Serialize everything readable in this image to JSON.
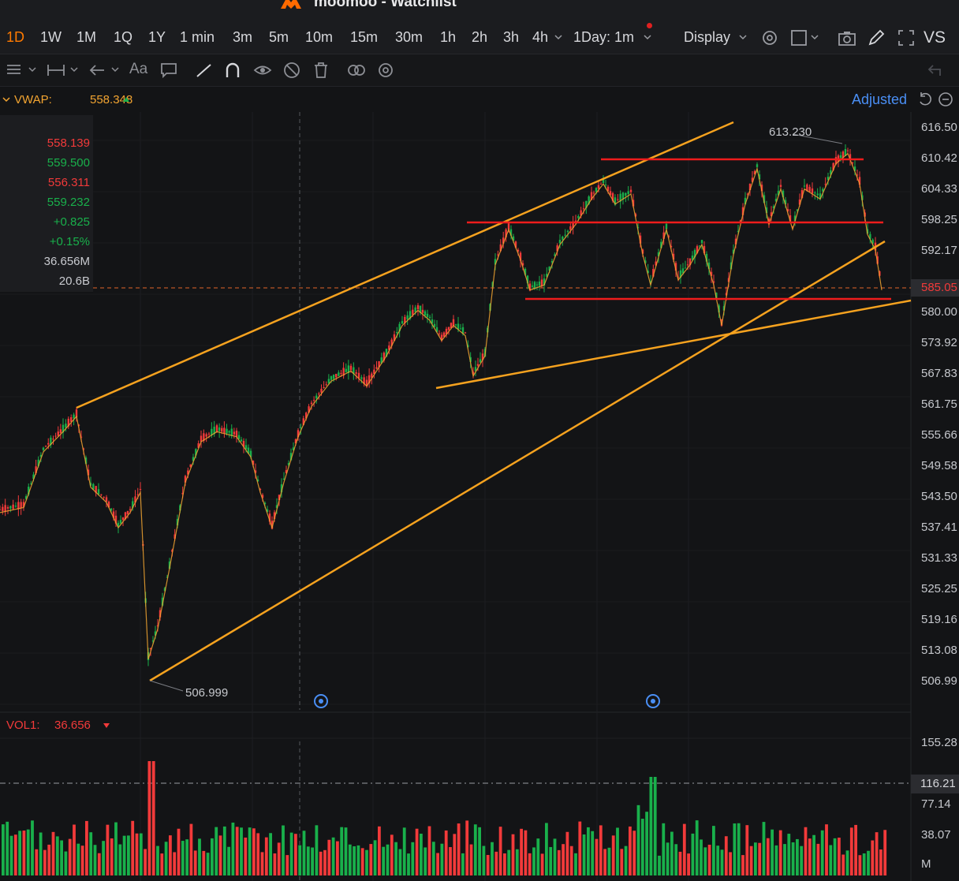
{
  "window": {
    "title": "moomoo - Watchlist"
  },
  "timeframes": [
    "1D",
    "1W",
    "1M",
    "1Q",
    "1Y",
    "1 min",
    "3m",
    "5m",
    "10m",
    "15m",
    "30m",
    "1h",
    "2h",
    "3h",
    "4h"
  ],
  "active_timeframe": "1D",
  "interval_select": "1Day: 1m",
  "display_label": "Display",
  "vs_label": "VS",
  "toolbar_icons": [
    "list-icon",
    "measure-icon",
    "arrow-left-icon",
    "text-size-icon",
    "comment-icon",
    "line-tool-icon",
    "magnet-icon",
    "eye-icon",
    "hide-icon",
    "trash-icon",
    "compare-icon",
    "settings-icon"
  ],
  "indicator": {
    "name": "VWAP:",
    "value": "558.348"
  },
  "adjusted_label": "Adjusted",
  "quote_panel": {
    "open": "558.139",
    "high": "559.500",
    "low": "556.311",
    "close": "559.232",
    "change": "+0.825",
    "change_pct": "+0.15%",
    "volume": "36.656M",
    "turnover": "20.6B"
  },
  "price_axis": [
    "616.50",
    "610.42",
    "604.33",
    "598.25",
    "592.17",
    "",
    "580.00",
    "573.92",
    "567.83",
    "561.75",
    "555.66",
    "549.58",
    "543.50",
    "537.41",
    "531.33",
    "525.25",
    "519.16",
    "513.08",
    "506.99"
  ],
  "current_price": "585.05",
  "annotations": {
    "high": "613.230",
    "low": "506.999"
  },
  "volume": {
    "label": "VOL1:",
    "value": "36.656",
    "axis": [
      "155.28",
      "116.21",
      "77.14",
      "38.07",
      "M"
    ],
    "tag": "116.21"
  },
  "colors": {
    "up": "#19b04b",
    "down": "#f23a3a",
    "accent": "#ff7a00",
    "trendline": "#f5a21f",
    "level": "#ee1c1c",
    "link": "#4a8ff5"
  }
}
